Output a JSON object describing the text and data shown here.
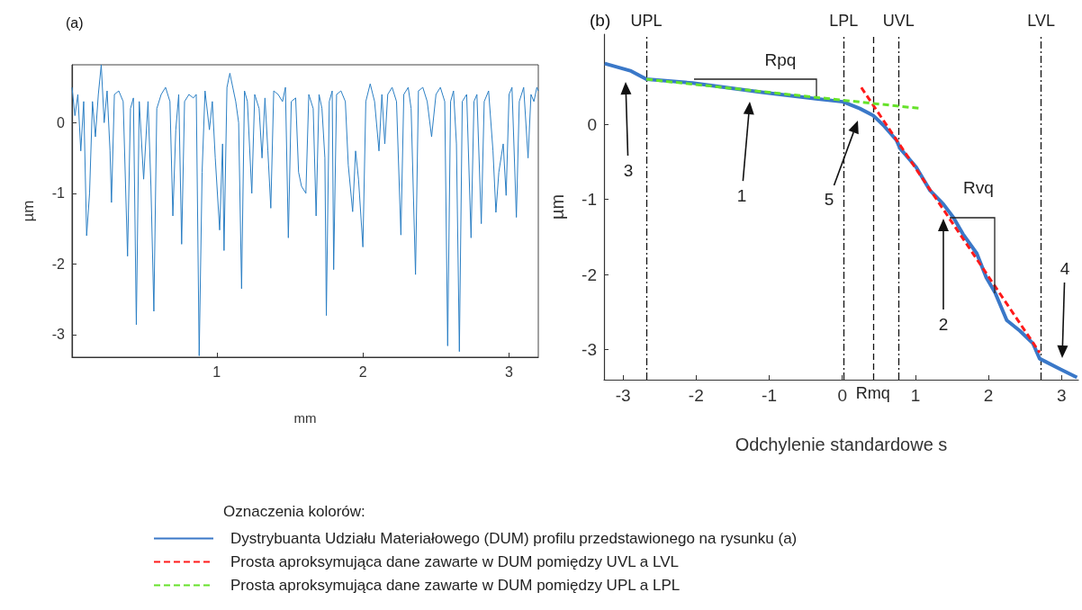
{
  "chart_data": [
    {
      "type": "line",
      "title": "(a)",
      "xlabel": "mm",
      "ylabel": "µm",
      "marker": "none",
      "x": [
        0.01,
        0.03,
        0.05,
        0.07,
        0.09,
        0.11,
        0.13,
        0.15,
        0.17,
        0.19,
        0.21,
        0.23,
        0.25,
        0.27,
        0.28,
        0.3,
        0.33,
        0.36,
        0.39,
        0.41,
        0.43,
        0.45,
        0.47,
        0.5,
        0.53,
        0.55,
        0.57,
        0.59,
        0.62,
        0.65,
        0.68,
        0.7,
        0.72,
        0.74,
        0.76,
        0.78,
        0.81,
        0.84,
        0.86,
        0.88,
        0.9,
        0.92,
        0.95,
        0.97,
        0.99,
        1.02,
        1.04,
        1.05,
        1.07,
        1.09,
        1.11,
        1.13,
        1.15,
        1.17,
        1.19,
        1.21,
        1.24,
        1.26,
        1.29,
        1.31,
        1.33,
        1.35,
        1.37,
        1.39,
        1.42,
        1.45,
        1.47,
        1.49,
        1.51,
        1.54,
        1.56,
        1.58,
        1.61,
        1.63,
        1.66,
        1.68,
        1.7,
        1.72,
        1.74,
        1.75,
        1.77,
        1.79,
        1.8,
        1.82,
        1.85,
        1.88,
        1.9,
        1.93,
        1.95,
        1.97,
        2.0,
        2.02,
        2.05,
        2.08,
        2.11,
        2.13,
        2.15,
        2.17,
        2.2,
        2.23,
        2.26,
        2.28,
        2.31,
        2.33,
        2.36,
        2.38,
        2.41,
        2.44,
        2.47,
        2.5,
        2.53,
        2.56,
        2.58,
        2.6,
        2.62,
        2.64,
        2.66,
        2.68,
        2.71,
        2.74,
        2.76,
        2.78,
        2.81,
        2.83,
        2.86,
        2.89,
        2.91,
        2.93,
        2.96,
        2.98,
        3.0,
        3.02,
        3.05,
        3.07,
        3.1,
        3.13,
        3.15,
        3.17,
        3.19,
        3.2
      ],
      "series": [
        {
          "color": "#2b7fc4",
          "values": [
            0.5,
            0.1,
            0.4,
            -0.4,
            0.3,
            -1.6,
            -1.0,
            0.3,
            -0.2,
            0.4,
            0.82,
            0.0,
            0.45,
            -0.4,
            -1.13,
            0.4,
            0.45,
            0.3,
            -1.89,
            0.2,
            0.35,
            -2.86,
            0.3,
            -0.8,
            0.3,
            -0.9,
            -2.67,
            0.2,
            0.4,
            0.5,
            0.3,
            -1.32,
            -0.1,
            0.4,
            -1.72,
            0.3,
            0.4,
            0.35,
            0.4,
            -3.3,
            -0.7,
            0.45,
            -0.1,
            0.3,
            -0.5,
            -1.52,
            -0.3,
            -1.81,
            0.5,
            0.7,
            0.5,
            0.3,
            0.0,
            -2.35,
            0.45,
            0.3,
            -1.0,
            0.4,
            0.2,
            -0.5,
            0.35,
            -0.4,
            -1.21,
            0.45,
            0.4,
            0.3,
            0.5,
            -1.63,
            0.3,
            0.35,
            -0.7,
            -0.9,
            -1.0,
            0.4,
            0.2,
            -1.32,
            0.4,
            0.2,
            -0.5,
            -2.73,
            0.3,
            0.45,
            -2.08,
            0.4,
            0.45,
            0.3,
            -0.6,
            -1.26,
            -0.4,
            -0.8,
            -1.76,
            0.3,
            0.55,
            0.3,
            -0.4,
            0.4,
            -0.3,
            0.4,
            0.5,
            0.3,
            -1.59,
            0.4,
            0.5,
            0.2,
            -2.15,
            0.45,
            0.5,
            0.3,
            -0.2,
            0.4,
            0.5,
            0.3,
            -3.16,
            0.3,
            0.45,
            -0.3,
            -3.24,
            0.3,
            0.4,
            -1.63,
            0.3,
            0.4,
            -1.43,
            0.3,
            0.45,
            -0.4,
            -1.27,
            -0.7,
            -0.3,
            -1.03,
            0.4,
            0.5,
            -1.34,
            0.3,
            0.5,
            -0.5,
            0.4,
            0.3,
            0.5,
            0.45
          ]
        }
      ],
      "xlim": [
        0.01,
        3.2
      ],
      "xticks": [
        1,
        2,
        3
      ],
      "ylim": [
        -3.32,
        0.82
      ],
      "yticks": [
        -3,
        -2,
        -1,
        0
      ]
    },
    {
      "type": "line",
      "title": "(b)",
      "xlabel": "Odchylenie standardowe s",
      "ylabel": "µm",
      "marker": "none",
      "legend": "bottom",
      "legend_title": "Oznaczenia kolorów:",
      "series": [
        {
          "name": "Dystrybuanta Udziału Materiałowego (DUM) profilu przedstawionego na rysunku (a)",
          "color": "#3a78c8",
          "line_style": "solid",
          "x": [
            -3.25,
            -2.89,
            -2.68,
            -2.05,
            -1.13,
            -0.36,
            0.01,
            0.24,
            0.42,
            0.56,
            0.74,
            0.79,
            1.01,
            1.2,
            1.38,
            1.52,
            1.65,
            1.84,
            1.97,
            2.09,
            2.25,
            2.43,
            2.61,
            2.7,
            2.98,
            3.21
          ],
          "values": [
            0.81,
            0.71,
            0.6,
            0.55,
            0.43,
            0.34,
            0.3,
            0.21,
            0.12,
            -0.01,
            -0.21,
            -0.32,
            -0.57,
            -0.88,
            -1.06,
            -1.24,
            -1.46,
            -1.72,
            -2.04,
            -2.24,
            -2.61,
            -2.75,
            -2.92,
            -3.12,
            -3.26,
            -3.37
          ]
        },
        {
          "name": "Prosta aproksymująca dane zawarte w DUM pomiędzy UVL a LVL",
          "color": "#ff1a1a",
          "line_style": "dashed",
          "x": [
            0.26,
            2.7
          ],
          "values": [
            0.49,
            -3.04
          ]
        },
        {
          "name": "Prosta aproksymująca dane zawarte w DUM pomiędzy UPL a LPL",
          "color": "#66e22a",
          "line_style": "dashed",
          "x": [
            -2.68,
            1.08
          ],
          "values": [
            0.6,
            0.21
          ]
        }
      ],
      "xlim": [
        -3.26,
        3.23
      ],
      "xticks": [
        -3,
        -2,
        -1,
        0,
        1,
        2,
        3
      ],
      "ylim": [
        -3.4,
        1.2
      ],
      "yticks": [
        -3,
        -2,
        -1,
        0
      ],
      "ref_lines": [
        {
          "axis": "x",
          "value": -2.68,
          "label": "UPL",
          "line_style": "dotted"
        },
        {
          "axis": "x",
          "value": 0.02,
          "label": "LPL",
          "line_style": "dotted"
        },
        {
          "axis": "x",
          "value": 0.77,
          "label": "UVL",
          "line_style": "dotted"
        },
        {
          "axis": "x",
          "value": 2.72,
          "label": "LVL",
          "line_style": "dotted"
        },
        {
          "axis": "x",
          "value": 0.42,
          "label": "Rmq",
          "line_style": "dashed"
        }
      ],
      "annotations": [
        "Rpq",
        "Rvq",
        "1",
        "2",
        "3",
        "4",
        "5"
      ]
    }
  ]
}
